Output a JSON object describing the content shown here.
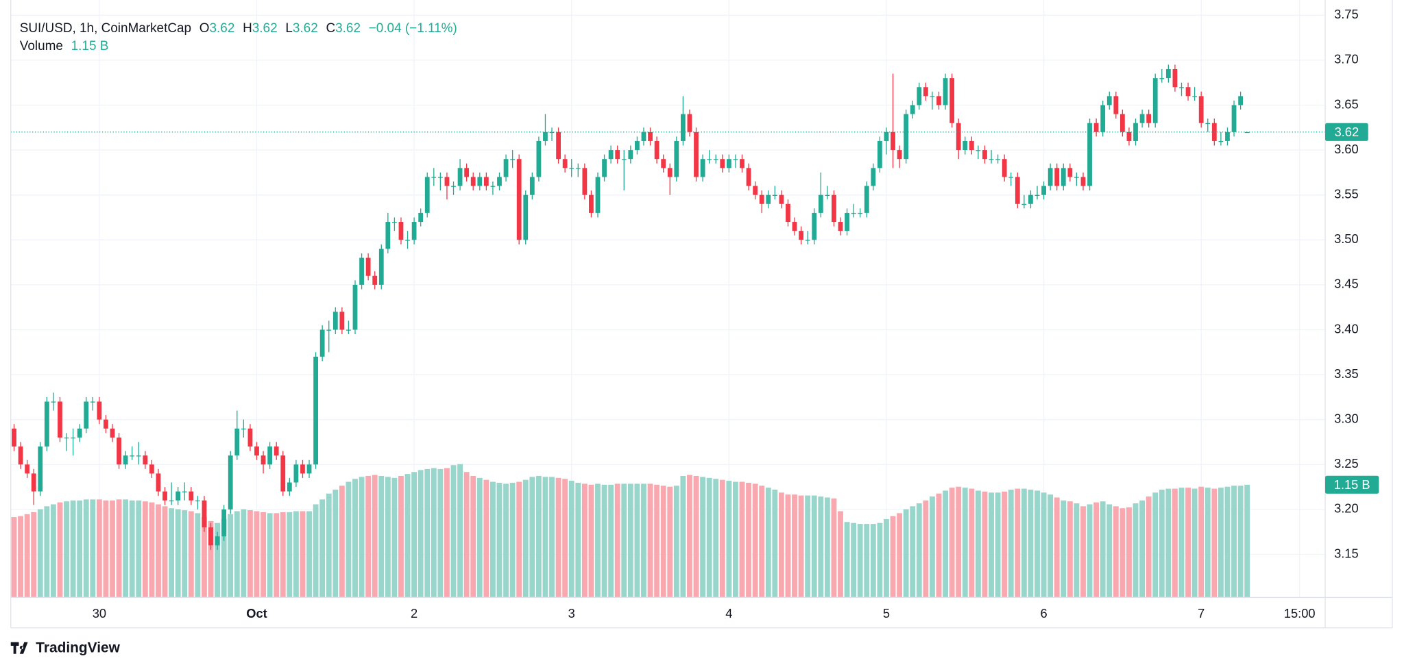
{
  "chart_data": {
    "type": "candlestick",
    "legend": {
      "title": "SUI/USD, 1h, CoinMarketCap",
      "open": "O",
      "high": "H",
      "low": "L",
      "close": "C",
      "change": "−0.04 (−1.11%)",
      "volume": "Volume",
      "volume_value": "1.15 B"
    },
    "footer": "TradingView",
    "up_color": "#22ab94",
    "down_color": "#f23645",
    "volume_up_color": "#98d5cb",
    "volume_down_color": "#f8a8ae",
    "grid": true,
    "ylim": [
      3.102,
      3.762
    ],
    "yticks": [
      3.15,
      {
        "value": 3.2,
        "label": "3.20"
      },
      3.25,
      {
        "value": 3.3,
        "label": "3.30"
      },
      3.35,
      {
        "value": 3.4,
        "label": "3.40"
      },
      3.45,
      {
        "value": 3.5,
        "label": "3.50"
      },
      3.55,
      {
        "value": 3.6,
        "label": "3.60"
      },
      3.65,
      {
        "value": 3.7,
        "label": "3.70"
      },
      3.75
    ],
    "xlim": [
      -0.5,
      199.9
    ],
    "xticks": [
      {
        "value": 13,
        "label": "30"
      },
      {
        "value": 37,
        "label": "Oct"
      },
      {
        "value": 61,
        "label": "2"
      },
      {
        "value": 85,
        "label": "3"
      },
      {
        "value": 109,
        "label": "4"
      },
      {
        "value": 133,
        "label": "5"
      },
      {
        "value": 157,
        "label": "6"
      },
      {
        "value": 181,
        "label": "7"
      },
      {
        "value": 196,
        "label": "15:00"
      }
    ],
    "candles": [
      [
        3.29,
        3.295,
        3.265,
        3.27
      ],
      [
        3.27,
        3.275,
        3.245,
        3.25
      ],
      [
        3.25,
        3.255,
        3.235,
        3.24
      ],
      [
        3.24,
        3.245,
        3.205,
        3.22
      ],
      [
        3.22,
        3.275,
        3.215,
        3.27
      ],
      [
        3.27,
        3.325,
        3.265,
        3.32
      ],
      [
        3.32,
        3.33,
        3.31,
        3.32
      ],
      [
        3.32,
        3.325,
        3.275,
        3.28
      ],
      [
        3.28,
        3.285,
        3.265,
        3.28
      ],
      [
        3.28,
        3.29,
        3.26,
        3.28
      ],
      [
        3.28,
        3.295,
        3.275,
        3.29
      ],
      [
        3.29,
        3.325,
        3.285,
        3.32
      ],
      [
        3.32,
        3.325,
        3.31,
        3.32
      ],
      [
        3.32,
        3.325,
        3.295,
        3.3
      ],
      [
        3.3,
        3.305,
        3.285,
        3.29
      ],
      [
        3.29,
        3.295,
        3.275,
        3.28
      ],
      [
        3.28,
        3.285,
        3.245,
        3.25
      ],
      [
        3.25,
        3.265,
        3.245,
        3.26
      ],
      [
        3.26,
        3.27,
        3.255,
        3.26
      ],
      [
        3.26,
        3.275,
        3.25,
        3.26
      ],
      [
        3.26,
        3.265,
        3.245,
        3.25
      ],
      [
        3.25,
        3.255,
        3.235,
        3.24
      ],
      [
        3.24,
        3.245,
        3.215,
        3.22
      ],
      [
        3.22,
        3.225,
        3.205,
        3.21
      ],
      [
        3.21,
        3.23,
        3.205,
        3.21
      ],
      [
        3.21,
        3.225,
        3.205,
        3.22
      ],
      [
        3.22,
        3.23,
        3.21,
        3.22
      ],
      [
        3.22,
        3.225,
        3.205,
        3.21
      ],
      [
        3.21,
        3.215,
        3.2,
        3.21
      ],
      [
        3.21,
        3.215,
        3.175,
        3.18
      ],
      [
        3.18,
        3.185,
        3.155,
        3.16
      ],
      [
        3.16,
        3.175,
        3.155,
        3.17
      ],
      [
        3.17,
        3.205,
        3.165,
        3.2
      ],
      [
        3.2,
        3.265,
        3.195,
        3.26
      ],
      [
        3.26,
        3.31,
        3.255,
        3.29
      ],
      [
        3.29,
        3.3,
        3.28,
        3.29
      ],
      [
        3.29,
        3.295,
        3.265,
        3.27
      ],
      [
        3.27,
        3.275,
        3.255,
        3.26
      ],
      [
        3.26,
        3.265,
        3.24,
        3.25
      ],
      [
        3.25,
        3.275,
        3.245,
        3.27
      ],
      [
        3.27,
        3.275,
        3.255,
        3.26
      ],
      [
        3.26,
        3.265,
        3.215,
        3.22
      ],
      [
        3.22,
        3.235,
        3.215,
        3.23
      ],
      [
        3.23,
        3.255,
        3.225,
        3.25
      ],
      [
        3.25,
        3.255,
        3.235,
        3.24
      ],
      [
        3.24,
        3.255,
        3.235,
        3.25
      ],
      [
        3.25,
        3.375,
        3.245,
        3.37
      ],
      [
        3.37,
        3.405,
        3.365,
        3.4
      ],
      [
        3.4,
        3.41,
        3.375,
        3.4
      ],
      [
        3.4,
        3.425,
        3.395,
        3.42
      ],
      [
        3.42,
        3.425,
        3.395,
        3.4
      ],
      [
        3.4,
        3.41,
        3.395,
        3.4
      ],
      [
        3.4,
        3.455,
        3.395,
        3.45
      ],
      [
        3.45,
        3.485,
        3.445,
        3.48
      ],
      [
        3.48,
        3.485,
        3.455,
        3.46
      ],
      [
        3.46,
        3.465,
        3.445,
        3.45
      ],
      [
        3.45,
        3.495,
        3.445,
        3.49
      ],
      [
        3.49,
        3.53,
        3.485,
        3.52
      ],
      [
        3.52,
        3.525,
        3.51,
        3.52
      ],
      [
        3.52,
        3.525,
        3.495,
        3.5
      ],
      [
        3.5,
        3.51,
        3.49,
        3.5
      ],
      [
        3.5,
        3.525,
        3.495,
        3.52
      ],
      [
        3.52,
        3.535,
        3.515,
        3.53
      ],
      [
        3.53,
        3.575,
        3.525,
        3.57
      ],
      [
        3.57,
        3.58,
        3.56,
        3.57
      ],
      [
        3.57,
        3.575,
        3.555,
        3.57
      ],
      [
        3.57,
        3.575,
        3.545,
        3.56
      ],
      [
        3.56,
        3.565,
        3.55,
        3.56
      ],
      [
        3.56,
        3.59,
        3.555,
        3.58
      ],
      [
        3.58,
        3.585,
        3.565,
        3.57
      ],
      [
        3.57,
        3.575,
        3.555,
        3.56
      ],
      [
        3.56,
        3.575,
        3.555,
        3.57
      ],
      [
        3.57,
        3.575,
        3.555,
        3.56
      ],
      [
        3.56,
        3.565,
        3.55,
        3.56
      ],
      [
        3.56,
        3.575,
        3.555,
        3.57
      ],
      [
        3.57,
        3.595,
        3.565,
        3.59
      ],
      [
        3.59,
        3.6,
        3.58,
        3.59
      ],
      [
        3.59,
        3.595,
        3.495,
        3.5
      ],
      [
        3.5,
        3.555,
        3.495,
        3.55
      ],
      [
        3.55,
        3.575,
        3.545,
        3.57
      ],
      [
        3.57,
        3.615,
        3.565,
        3.61
      ],
      [
        3.61,
        3.64,
        3.605,
        3.62
      ],
      [
        3.62,
        3.625,
        3.61,
        3.62
      ],
      [
        3.62,
        3.625,
        3.585,
        3.59
      ],
      [
        3.59,
        3.595,
        3.575,
        3.58
      ],
      [
        3.58,
        3.59,
        3.57,
        3.58
      ],
      [
        3.58,
        3.585,
        3.57,
        3.58
      ],
      [
        3.58,
        3.585,
        3.545,
        3.55
      ],
      [
        3.55,
        3.555,
        3.525,
        3.53
      ],
      [
        3.53,
        3.575,
        3.525,
        3.57
      ],
      [
        3.57,
        3.595,
        3.565,
        3.59
      ],
      [
        3.59,
        3.605,
        3.585,
        3.6
      ],
      [
        3.6,
        3.605,
        3.585,
        3.59
      ],
      [
        3.59,
        3.6,
        3.555,
        3.59
      ],
      [
        3.59,
        3.605,
        3.585,
        3.6
      ],
      [
        3.6,
        3.615,
        3.595,
        3.61
      ],
      [
        3.61,
        3.625,
        3.605,
        3.62
      ],
      [
        3.62,
        3.625,
        3.605,
        3.61
      ],
      [
        3.61,
        3.615,
        3.585,
        3.59
      ],
      [
        3.59,
        3.595,
        3.575,
        3.58
      ],
      [
        3.58,
        3.585,
        3.55,
        3.57
      ],
      [
        3.57,
        3.615,
        3.565,
        3.61
      ],
      [
        3.61,
        3.66,
        3.605,
        3.64
      ],
      [
        3.64,
        3.645,
        3.615,
        3.62
      ],
      [
        3.62,
        3.625,
        3.565,
        3.57
      ],
      [
        3.57,
        3.595,
        3.565,
        3.59
      ],
      [
        3.59,
        3.6,
        3.585,
        3.59
      ],
      [
        3.59,
        3.595,
        3.585,
        3.59
      ],
      [
        3.59,
        3.595,
        3.575,
        3.58
      ],
      [
        3.58,
        3.595,
        3.575,
        3.59
      ],
      [
        3.59,
        3.595,
        3.58,
        3.59
      ],
      [
        3.59,
        3.595,
        3.575,
        3.58
      ],
      [
        3.58,
        3.585,
        3.555,
        3.56
      ],
      [
        3.56,
        3.565,
        3.545,
        3.55
      ],
      [
        3.55,
        3.555,
        3.53,
        3.54
      ],
      [
        3.54,
        3.555,
        3.535,
        3.55
      ],
      [
        3.55,
        3.56,
        3.545,
        3.55
      ],
      [
        3.55,
        3.555,
        3.535,
        3.54
      ],
      [
        3.54,
        3.545,
        3.515,
        3.52
      ],
      [
        3.52,
        3.525,
        3.505,
        3.51
      ],
      [
        3.51,
        3.515,
        3.495,
        3.5
      ],
      [
        3.5,
        3.51,
        3.495,
        3.5
      ],
      [
        3.5,
        3.535,
        3.495,
        3.53
      ],
      [
        3.53,
        3.575,
        3.525,
        3.55
      ],
      [
        3.55,
        3.56,
        3.545,
        3.55
      ],
      [
        3.55,
        3.555,
        3.515,
        3.52
      ],
      [
        3.52,
        3.525,
        3.505,
        3.51
      ],
      [
        3.51,
        3.535,
        3.505,
        3.53
      ],
      [
        3.53,
        3.54,
        3.525,
        3.53
      ],
      [
        3.53,
        3.535,
        3.525,
        3.53
      ],
      [
        3.53,
        3.565,
        3.525,
        3.56
      ],
      [
        3.56,
        3.585,
        3.555,
        3.58
      ],
      [
        3.58,
        3.615,
        3.575,
        3.61
      ],
      [
        3.61,
        3.625,
        3.595,
        3.62
      ],
      [
        3.62,
        3.685,
        3.58,
        3.6
      ],
      [
        3.6,
        3.605,
        3.58,
        3.59
      ],
      [
        3.59,
        3.645,
        3.585,
        3.64
      ],
      [
        3.64,
        3.655,
        3.635,
        3.65
      ],
      [
        3.65,
        3.675,
        3.645,
        3.67
      ],
      [
        3.67,
        3.675,
        3.655,
        3.66
      ],
      [
        3.66,
        3.665,
        3.645,
        3.66
      ],
      [
        3.66,
        3.665,
        3.645,
        3.65
      ],
      [
        3.65,
        3.685,
        3.645,
        3.68
      ],
      [
        3.68,
        3.685,
        3.625,
        3.63
      ],
      [
        3.63,
        3.635,
        3.59,
        3.6
      ],
      [
        3.6,
        3.615,
        3.595,
        3.61
      ],
      [
        3.61,
        3.615,
        3.595,
        3.6
      ],
      [
        3.6,
        3.605,
        3.59,
        3.6
      ],
      [
        3.6,
        3.605,
        3.585,
        3.59
      ],
      [
        3.59,
        3.6,
        3.585,
        3.59
      ],
      [
        3.59,
        3.595,
        3.585,
        3.59
      ],
      [
        3.59,
        3.595,
        3.565,
        3.57
      ],
      [
        3.57,
        3.575,
        3.56,
        3.57
      ],
      [
        3.57,
        3.575,
        3.535,
        3.54
      ],
      [
        3.54,
        3.55,
        3.535,
        3.54
      ],
      [
        3.54,
        3.555,
        3.535,
        3.55
      ],
      [
        3.55,
        3.56,
        3.545,
        3.55
      ],
      [
        3.55,
        3.565,
        3.545,
        3.56
      ],
      [
        3.56,
        3.585,
        3.555,
        3.58
      ],
      [
        3.58,
        3.585,
        3.555,
        3.56
      ],
      [
        3.56,
        3.585,
        3.555,
        3.58
      ],
      [
        3.58,
        3.585,
        3.565,
        3.57
      ],
      [
        3.57,
        3.575,
        3.56,
        3.57
      ],
      [
        3.57,
        3.575,
        3.555,
        3.56
      ],
      [
        3.56,
        3.635,
        3.555,
        3.63
      ],
      [
        3.63,
        3.635,
        3.615,
        3.62
      ],
      [
        3.62,
        3.655,
        3.615,
        3.65
      ],
      [
        3.65,
        3.665,
        3.645,
        3.66
      ],
      [
        3.66,
        3.665,
        3.635,
        3.64
      ],
      [
        3.64,
        3.645,
        3.615,
        3.62
      ],
      [
        3.62,
        3.625,
        3.605,
        3.61
      ],
      [
        3.61,
        3.635,
        3.605,
        3.63
      ],
      [
        3.63,
        3.645,
        3.625,
        3.64
      ],
      [
        3.64,
        3.645,
        3.625,
        3.63
      ],
      [
        3.63,
        3.685,
        3.625,
        3.68
      ],
      [
        3.68,
        3.69,
        3.675,
        3.68
      ],
      [
        3.68,
        3.695,
        3.675,
        3.69
      ],
      [
        3.69,
        3.695,
        3.665,
        3.67
      ],
      [
        3.67,
        3.675,
        3.66,
        3.67
      ],
      [
        3.67,
        3.675,
        3.655,
        3.66
      ],
      [
        3.66,
        3.67,
        3.655,
        3.66
      ],
      [
        3.66,
        3.665,
        3.625,
        3.63
      ],
      [
        3.63,
        3.635,
        3.62,
        3.63
      ],
      [
        3.63,
        3.635,
        3.605,
        3.61
      ],
      [
        3.61,
        3.62,
        3.605,
        3.61
      ],
      [
        3.61,
        3.625,
        3.605,
        3.62
      ],
      [
        3.62,
        3.655,
        3.615,
        3.65
      ],
      [
        3.65,
        3.665,
        3.645,
        3.66
      ],
      [
        3.62,
        3.62,
        3.62,
        3.62
      ]
    ],
    "volume": [
      0.82,
      0.83,
      0.85,
      0.87,
      0.9,
      0.93,
      0.95,
      0.97,
      0.98,
      0.99,
      0.99,
      1.0,
      1.0,
      1.0,
      0.99,
      0.99,
      1.0,
      1.0,
      0.99,
      0.99,
      0.98,
      0.97,
      0.95,
      0.93,
      0.91,
      0.9,
      0.89,
      0.88,
      0.86,
      0.82,
      0.78,
      0.76,
      0.8,
      0.85,
      0.88,
      0.9,
      0.89,
      0.88,
      0.87,
      0.86,
      0.86,
      0.87,
      0.87,
      0.88,
      0.88,
      0.88,
      0.95,
      1.0,
      1.06,
      1.1,
      1.14,
      1.18,
      1.21,
      1.23,
      1.24,
      1.25,
      1.24,
      1.23,
      1.22,
      1.24,
      1.26,
      1.28,
      1.3,
      1.31,
      1.32,
      1.31,
      1.32,
      1.35,
      1.36,
      1.28,
      1.24,
      1.22,
      1.2,
      1.18,
      1.17,
      1.16,
      1.17,
      1.18,
      1.2,
      1.23,
      1.24,
      1.23,
      1.23,
      1.22,
      1.21,
      1.19,
      1.17,
      1.16,
      1.15,
      1.16,
      1.15,
      1.15,
      1.16,
      1.16,
      1.16,
      1.16,
      1.16,
      1.16,
      1.15,
      1.14,
      1.13,
      1.14,
      1.24,
      1.25,
      1.24,
      1.23,
      1.22,
      1.21,
      1.2,
      1.19,
      1.18,
      1.18,
      1.17,
      1.16,
      1.14,
      1.12,
      1.1,
      1.07,
      1.05,
      1.05,
      1.04,
      1.04,
      1.04,
      1.03,
      1.02,
      1.01,
      0.88,
      0.77,
      0.76,
      0.75,
      0.75,
      0.75,
      0.76,
      0.8,
      0.83,
      0.86,
      0.9,
      0.93,
      0.96,
      0.99,
      1.03,
      1.06,
      1.09,
      1.12,
      1.13,
      1.12,
      1.11,
      1.09,
      1.08,
      1.07,
      1.07,
      1.08,
      1.1,
      1.11,
      1.11,
      1.1,
      1.09,
      1.07,
      1.05,
      1.02,
      0.99,
      0.98,
      0.96,
      0.93,
      0.95,
      0.97,
      0.98,
      0.95,
      0.93,
      0.91,
      0.92,
      0.96,
      0.99,
      1.03,
      1.07,
      1.1,
      1.11,
      1.11,
      1.12,
      1.12,
      1.11,
      1.13,
      1.12,
      1.11,
      1.12,
      1.13,
      1.14,
      1.14,
      1.15
    ]
  }
}
